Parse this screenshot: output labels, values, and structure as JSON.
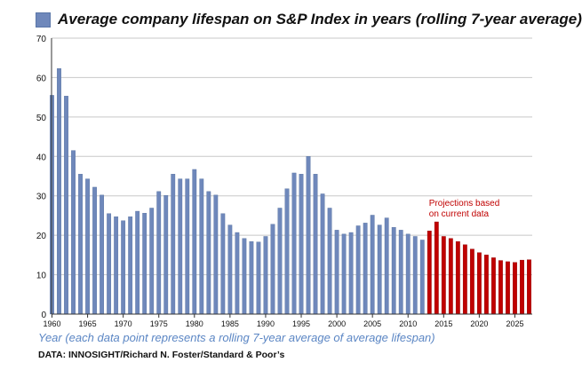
{
  "chart_data": {
    "type": "bar",
    "title": "Average company lifespan on S&P Index in years (rolling 7-year average)",
    "xlabel": "Year (each data point represents a rolling 7-year average of average lifespan)",
    "ylabel": "",
    "source": "DATA: INNOSIGHT/Richard N. Foster/Standard & Poor’s",
    "ylim": [
      0,
      70
    ],
    "yticks": [
      0,
      10,
      20,
      30,
      40,
      50,
      60,
      70
    ],
    "xlim": [
      1960,
      2027
    ],
    "xticks": [
      1960,
      1965,
      1970,
      1975,
      1980,
      1985,
      1990,
      1995,
      2000,
      2005,
      2010,
      2015,
      2020,
      2025
    ],
    "grid": "horizontal",
    "colors": {
      "historical": "#6f88bb",
      "projection": "#c00000"
    },
    "x": [
      1960,
      1961,
      1962,
      1963,
      1964,
      1965,
      1966,
      1967,
      1968,
      1969,
      1970,
      1971,
      1972,
      1973,
      1974,
      1975,
      1976,
      1977,
      1978,
      1979,
      1980,
      1981,
      1982,
      1983,
      1984,
      1985,
      1986,
      1987,
      1988,
      1989,
      1990,
      1991,
      1992,
      1993,
      1994,
      1995,
      1996,
      1997,
      1998,
      1999,
      2000,
      2001,
      2002,
      2003,
      2004,
      2005,
      2006,
      2007,
      2008,
      2009,
      2010,
      2011,
      2012,
      2013,
      2014,
      2015,
      2016,
      2017,
      2018,
      2019,
      2020,
      2021,
      2022,
      2023,
      2024,
      2025,
      2026,
      2027
    ],
    "values": [
      55.5,
      62.3,
      55.3,
      41.5,
      35.5,
      34.3,
      32.2,
      30.2,
      25.5,
      24.7,
      23.7,
      24.7,
      26.1,
      25.6,
      26.9,
      31.1,
      30.1,
      35.5,
      34.3,
      34.3,
      36.7,
      34.3,
      31.1,
      30.2,
      25.5,
      22.6,
      20.7,
      19.2,
      18.4,
      18.3,
      19.7,
      22.8,
      26.9,
      31.8,
      35.8,
      35.5,
      40.0,
      35.5,
      30.5,
      26.9,
      21.3,
      20.3,
      20.7,
      22.4,
      23.1,
      25.1,
      22.6,
      24.4,
      22.0,
      21.3,
      20.3,
      19.7,
      18.8,
      21.1,
      23.4,
      19.7,
      19.2,
      18.4,
      17.6,
      16.5,
      15.6,
      15.0,
      14.3,
      13.6,
      13.3,
      13.1,
      13.7,
      13.8
    ],
    "projection_start": 2013,
    "annotations": [
      {
        "text_lines": [
          "Projections based",
          "on current data"
        ],
        "color": "#c00000",
        "x": 2013,
        "y": 27.5
      }
    ]
  }
}
